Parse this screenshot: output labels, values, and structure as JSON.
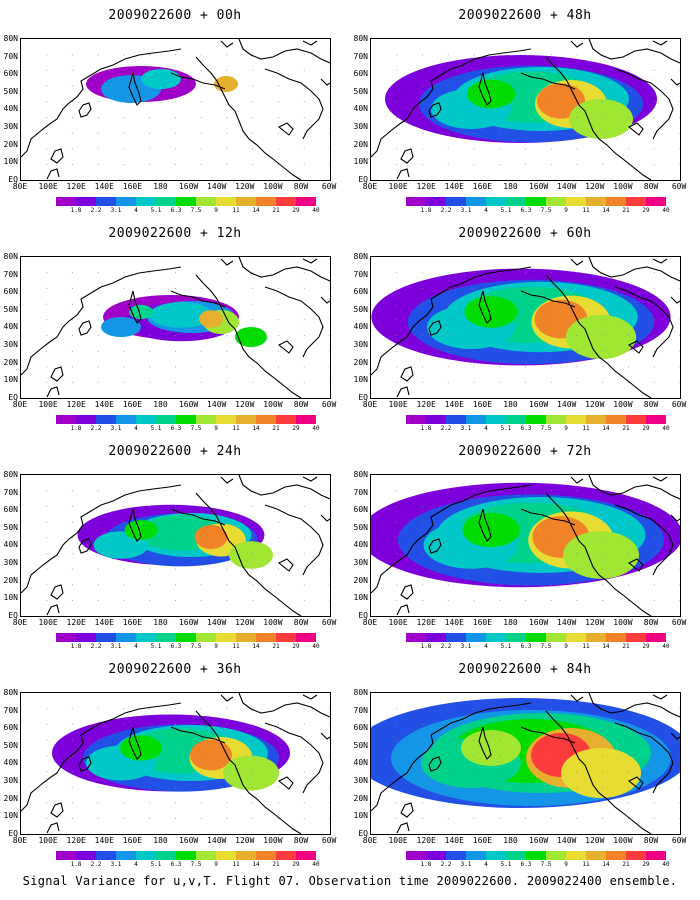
{
  "panels": [
    {
      "title": "2009022600 + 00h",
      "hour": 0
    },
    {
      "title": "2009022600 + 48h",
      "hour": 48
    },
    {
      "title": "2009022600 + 12h",
      "hour": 12
    },
    {
      "title": "2009022600 + 60h",
      "hour": 60
    },
    {
      "title": "2009022600 + 24h",
      "hour": 24
    },
    {
      "title": "2009022600 + 72h",
      "hour": 72
    },
    {
      "title": "2009022600 + 36h",
      "hour": 36
    },
    {
      "title": "2009022600 + 84h",
      "hour": 84
    }
  ],
  "lat_labels": [
    "80N",
    "70N",
    "60N",
    "50N",
    "40N",
    "30N",
    "20N",
    "10N",
    "EQ"
  ],
  "lon_labels": [
    "80E",
    "100E",
    "120E",
    "140E",
    "160E",
    "180",
    "160W",
    "140W",
    "120W",
    "100W",
    "80W",
    "60W"
  ],
  "colorbar": {
    "labels": [
      "1.8",
      "2.2",
      "3.1",
      "4",
      "5.1",
      "6.3",
      "7.5",
      "9",
      "11",
      "14",
      "21",
      "29",
      "40"
    ],
    "colors": [
      "#a000c8",
      "#7d00dc",
      "#2250e6",
      "#1496e6",
      "#00c8c8",
      "#00d28c",
      "#00dc00",
      "#a0e632",
      "#e6dc32",
      "#e6af2d",
      "#f08228",
      "#fa3c3c",
      "#f00082"
    ]
  },
  "caption": "Signal Variance for u,v,T. Flight 07. Observation time 2009022600. 2009022400 ensemble."
}
